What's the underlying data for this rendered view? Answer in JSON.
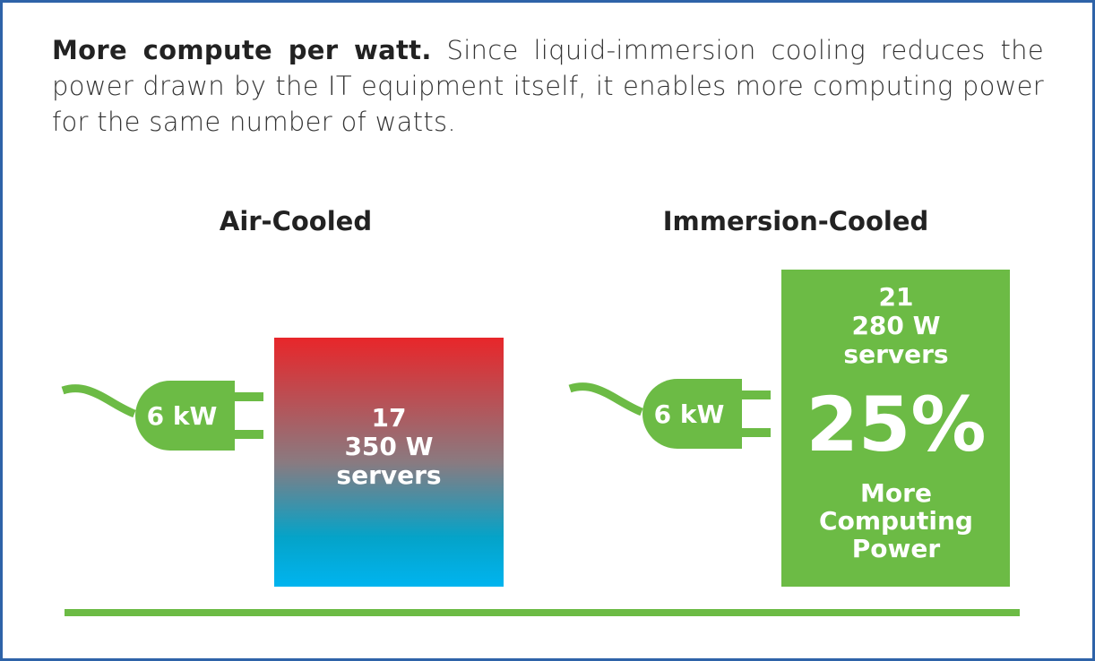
{
  "intro": {
    "lead": "More compute per watt.",
    "text": "Since liquid-immersion cooling reduces the power drawn by the IT equipment itself, it enables more computing power for the same number of watts."
  },
  "panels": [
    {
      "title": "Air-Cooled",
      "plug": "6 kW",
      "box_lines": [
        "17",
        "350 W",
        "servers"
      ]
    },
    {
      "title": "Immersion-Cooled",
      "plug": "6 kW",
      "box_lines": [
        "21",
        "280 W",
        "servers"
      ],
      "highlight": "25%",
      "highlight_lines": [
        "More",
        "Computing",
        "Power"
      ]
    }
  ]
}
